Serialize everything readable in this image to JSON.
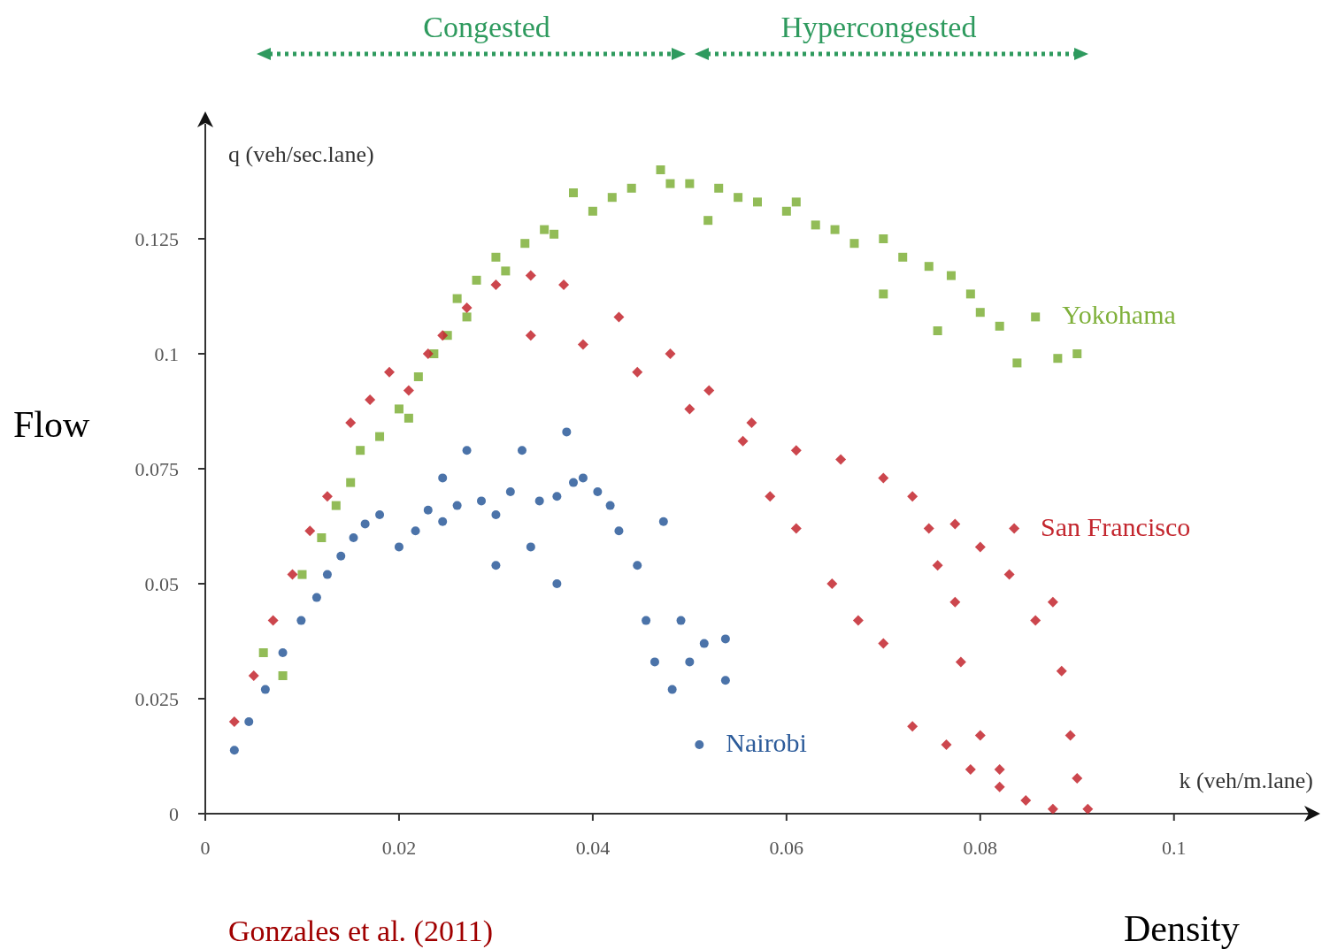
{
  "chart_data": {
    "type": "scatter",
    "xlabel": "k (veh/m.lane)",
    "ylabel": "q (veh/sec.lane)",
    "annotations": [
      "Congested",
      "Hypercongested",
      "Flow",
      "Density",
      "Gonzales et al. (2011)"
    ],
    "xlim": [
      0,
      0.114
    ],
    "ylim": [
      0,
      0.15
    ],
    "xticks": [
      0,
      0.02,
      0.04,
      0.06,
      0.08,
      0.1
    ],
    "yticks": [
      0,
      0.025,
      0.05,
      0.075,
      0.1,
      0.125
    ],
    "grid": false,
    "legend": false,
    "series": [
      {
        "name": "Yokohama",
        "color": "#7fb03a",
        "marker": "square",
        "x": [
          0.006,
          0.008,
          0.01,
          0.012,
          0.0135,
          0.015,
          0.016,
          0.018,
          0.02,
          0.021,
          0.022,
          0.0236,
          0.025,
          0.026,
          0.027,
          0.028,
          0.03,
          0.031,
          0.033,
          0.035,
          0.036,
          0.038,
          0.04,
          0.042,
          0.044,
          0.047,
          0.048,
          0.05,
          0.0519,
          0.053,
          0.055,
          0.057,
          0.06,
          0.061,
          0.063,
          0.065,
          0.067,
          0.07,
          0.07,
          0.072,
          0.0747,
          0.0756,
          0.077,
          0.079,
          0.08,
          0.082,
          0.0838,
          0.088,
          0.09,
          0.0857
        ],
        "values": [
          0.035,
          0.03,
          0.052,
          0.06,
          0.067,
          0.072,
          0.079,
          0.082,
          0.088,
          0.086,
          0.095,
          0.1,
          0.104,
          0.112,
          0.108,
          0.116,
          0.121,
          0.118,
          0.124,
          0.127,
          0.126,
          0.135,
          0.131,
          0.134,
          0.136,
          0.14,
          0.137,
          0.137,
          0.129,
          0.136,
          0.134,
          0.133,
          0.131,
          0.133,
          0.128,
          0.127,
          0.124,
          0.125,
          0.113,
          0.121,
          0.119,
          0.105,
          0.117,
          0.113,
          0.109,
          0.106,
          0.098,
          0.099,
          0.1,
          0.108
        ]
      },
      {
        "name": "San Francisco",
        "color": "#c3262e",
        "marker": "diamond",
        "x": [
          0.003,
          0.005,
          0.007,
          0.009,
          0.0108,
          0.0126,
          0.015,
          0.017,
          0.019,
          0.021,
          0.023,
          0.0245,
          0.027,
          0.03,
          0.0336,
          0.037,
          0.0336,
          0.039,
          0.0427,
          0.0446,
          0.048,
          0.05,
          0.052,
          0.0555,
          0.0564,
          0.0583,
          0.061,
          0.061,
          0.0647,
          0.0656,
          0.0674,
          0.07,
          0.07,
          0.073,
          0.073,
          0.0765,
          0.079,
          0.0774,
          0.08,
          0.082,
          0.083,
          0.0847,
          0.0857,
          0.0875,
          0.0884,
          0.0893,
          0.09,
          0.0911,
          0.0875,
          0.0756,
          0.0774,
          0.078,
          0.08,
          0.082,
          0.0747,
          0.0835
        ],
        "values": [
          0.02,
          0.03,
          0.042,
          0.052,
          0.0615,
          0.069,
          0.085,
          0.09,
          0.096,
          0.092,
          0.1,
          0.104,
          0.11,
          0.115,
          0.117,
          0.115,
          0.104,
          0.102,
          0.108,
          0.096,
          0.1,
          0.088,
          0.092,
          0.081,
          0.085,
          0.069,
          0.062,
          0.079,
          0.05,
          0.077,
          0.042,
          0.073,
          0.037,
          0.069,
          0.019,
          0.015,
          0.0096,
          0.063,
          0.058,
          0.0058,
          0.052,
          0.0029,
          0.042,
          0.046,
          0.031,
          0.017,
          0.0077,
          0.001,
          0.001,
          0.054,
          0.046,
          0.033,
          0.017,
          0.0096,
          0.062,
          0.062
        ]
      },
      {
        "name": "Nairobi",
        "color": "#2c5b9a",
        "marker": "circle",
        "x": [
          0.003,
          0.0045,
          0.0062,
          0.008,
          0.0099,
          0.0115,
          0.0126,
          0.014,
          0.0153,
          0.0165,
          0.018,
          0.02,
          0.0217,
          0.023,
          0.0245,
          0.0245,
          0.026,
          0.027,
          0.0285,
          0.03,
          0.03,
          0.0315,
          0.0327,
          0.0336,
          0.0345,
          0.0363,
          0.0363,
          0.0373,
          0.038,
          0.039,
          0.0405,
          0.0418,
          0.0427,
          0.0446,
          0.0455,
          0.0464,
          0.0473,
          0.0482,
          0.0491,
          0.05,
          0.0515,
          0.0537,
          0.0537,
          0.051
        ],
        "values": [
          0.0138,
          0.02,
          0.027,
          0.035,
          0.042,
          0.047,
          0.052,
          0.056,
          0.06,
          0.063,
          0.065,
          0.058,
          0.0615,
          0.066,
          0.0635,
          0.073,
          0.067,
          0.079,
          0.068,
          0.065,
          0.054,
          0.07,
          0.079,
          0.058,
          0.068,
          0.069,
          0.05,
          0.083,
          0.072,
          0.073,
          0.07,
          0.067,
          0.0615,
          0.054,
          0.042,
          0.033,
          0.0635,
          0.027,
          0.042,
          0.033,
          0.037,
          0.029,
          0.038,
          0.015
        ]
      }
    ]
  }
}
